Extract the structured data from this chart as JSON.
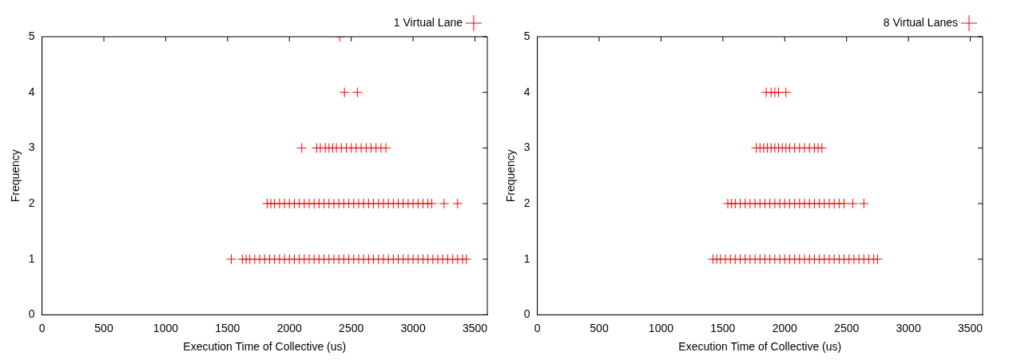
{
  "chart_data": [
    {
      "type": "scatter",
      "xlabel": "Execution Time of Collective (us)",
      "ylabel": "Frequency",
      "xlim": [
        0,
        3600
      ],
      "xticks": [
        0,
        500,
        1000,
        1500,
        2000,
        2500,
        3000,
        3500
      ],
      "ylim": [
        0,
        5
      ],
      "yticks": [
        0,
        1,
        2,
        3,
        4,
        5
      ],
      "grid": false,
      "legend": "top right",
      "marker": "cross",
      "series": [
        {
          "name": "1 Virtual Lane",
          "color": "#ff0000",
          "x": [
            1530,
            1620,
            1650,
            1680,
            1720,
            1760,
            1800,
            1840,
            1880,
            1920,
            1960,
            2000,
            2040,
            2080,
            2120,
            2160,
            2200,
            2240,
            2280,
            2320,
            2360,
            2400,
            2440,
            2480,
            2520,
            2560,
            2600,
            2640,
            2680,
            2720,
            2760,
            2800,
            2840,
            2880,
            2920,
            2960,
            3000,
            3040,
            3080,
            3120,
            3160,
            3200,
            3240,
            3280,
            3320,
            3360,
            3400,
            3430,
            1820,
            1850,
            1880,
            1920,
            1960,
            2000,
            2040,
            2080,
            2120,
            2160,
            2200,
            2240,
            2280,
            2320,
            2360,
            2400,
            2440,
            2480,
            2520,
            2560,
            2600,
            2640,
            2680,
            2720,
            2760,
            2800,
            2840,
            2880,
            2920,
            2960,
            3000,
            3040,
            3080,
            3120,
            3150,
            3250,
            3360,
            2100,
            2220,
            2250,
            2290,
            2320,
            2350,
            2380,
            2420,
            2460,
            2500,
            2540,
            2580,
            2620,
            2660,
            2700,
            2740,
            2780,
            2445,
            2550,
            2407
          ],
          "values": [
            1,
            1,
            1,
            1,
            1,
            1,
            1,
            1,
            1,
            1,
            1,
            1,
            1,
            1,
            1,
            1,
            1,
            1,
            1,
            1,
            1,
            1,
            1,
            1,
            1,
            1,
            1,
            1,
            1,
            1,
            1,
            1,
            1,
            1,
            1,
            1,
            1,
            1,
            1,
            1,
            1,
            1,
            1,
            1,
            1,
            1,
            1,
            1,
            2,
            2,
            2,
            2,
            2,
            2,
            2,
            2,
            2,
            2,
            2,
            2,
            2,
            2,
            2,
            2,
            2,
            2,
            2,
            2,
            2,
            2,
            2,
            2,
            2,
            2,
            2,
            2,
            2,
            2,
            2,
            2,
            2,
            2,
            2,
            2,
            2,
            3,
            3,
            3,
            3,
            3,
            3,
            3,
            3,
            3,
            3,
            3,
            3,
            3,
            3,
            3,
            3,
            3,
            4,
            4,
            5
          ]
        }
      ]
    },
    {
      "type": "scatter",
      "xlabel": "Execution Time of Collective (us)",
      "ylabel": "Frequency",
      "xlim": [
        0,
        3600
      ],
      "xticks": [
        0,
        500,
        1000,
        1500,
        2000,
        2500,
        3000,
        3500
      ],
      "ylim": [
        0,
        5
      ],
      "yticks": [
        0,
        1,
        2,
        3,
        4,
        5
      ],
      "grid": false,
      "legend": "top right",
      "marker": "cross",
      "series": [
        {
          "name": "8 Virtual Lanes",
          "color": "#ff0000",
          "x": [
            1420,
            1450,
            1480,
            1520,
            1560,
            1600,
            1640,
            1680,
            1720,
            1760,
            1800,
            1840,
            1880,
            1920,
            1960,
            2000,
            2040,
            2080,
            2120,
            2160,
            2200,
            2240,
            2280,
            2320,
            2360,
            2400,
            2440,
            2480,
            2520,
            2560,
            2600,
            2640,
            2680,
            2720,
            2750,
            1540,
            1570,
            1600,
            1640,
            1680,
            1720,
            1760,
            1800,
            1840,
            1880,
            1920,
            1960,
            2000,
            2040,
            2080,
            2120,
            2160,
            2200,
            2240,
            2280,
            2320,
            2360,
            2400,
            2440,
            2480,
            2550,
            2640,
            1770,
            1800,
            1830,
            1860,
            1890,
            1920,
            1950,
            1980,
            2010,
            2040,
            2080,
            2120,
            2160,
            2200,
            2240,
            2270,
            2300,
            1850,
            1890,
            1920,
            1950,
            2010
          ],
          "values": [
            1,
            1,
            1,
            1,
            1,
            1,
            1,
            1,
            1,
            1,
            1,
            1,
            1,
            1,
            1,
            1,
            1,
            1,
            1,
            1,
            1,
            1,
            1,
            1,
            1,
            1,
            1,
            1,
            1,
            1,
            1,
            1,
            1,
            1,
            1,
            2,
            2,
            2,
            2,
            2,
            2,
            2,
            2,
            2,
            2,
            2,
            2,
            2,
            2,
            2,
            2,
            2,
            2,
            2,
            2,
            2,
            2,
            2,
            2,
            2,
            2,
            2,
            3,
            3,
            3,
            3,
            3,
            3,
            3,
            3,
            3,
            3,
            3,
            3,
            3,
            3,
            3,
            3,
            3,
            4,
            4,
            4,
            4,
            4
          ]
        }
      ]
    }
  ]
}
